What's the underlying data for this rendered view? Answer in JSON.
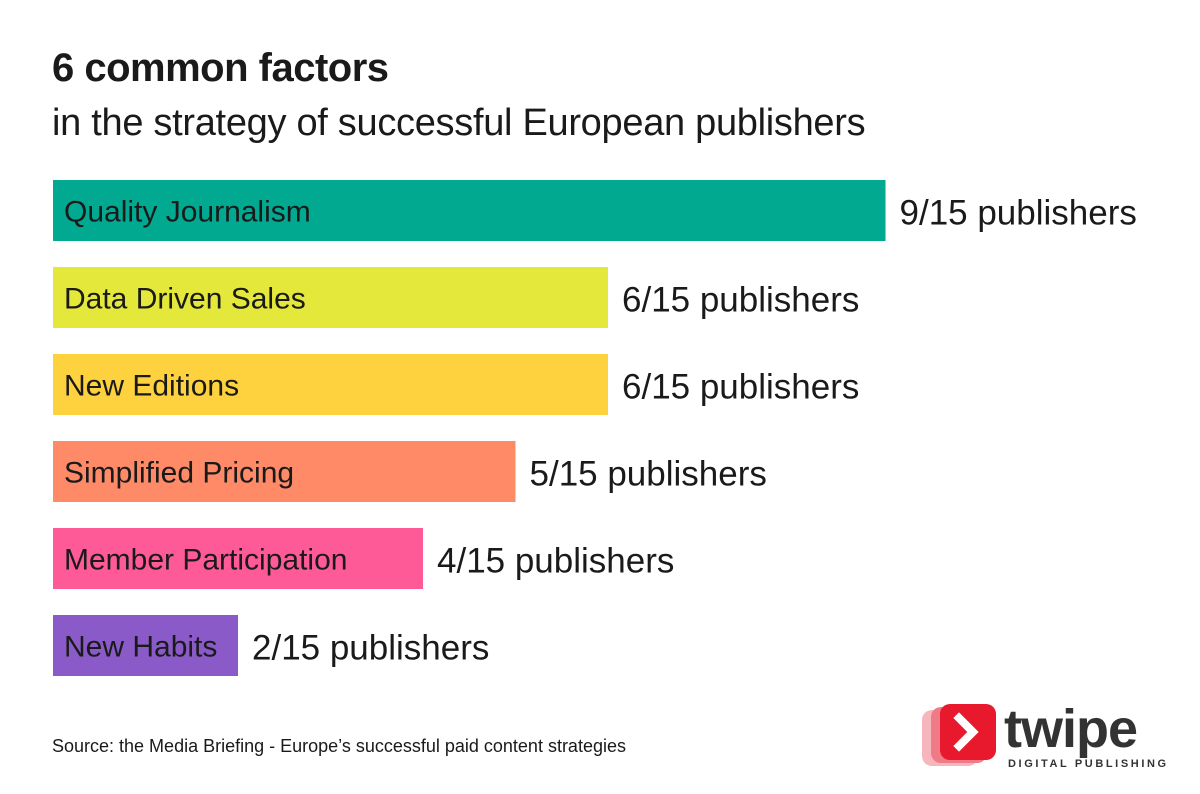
{
  "chart_data": {
    "type": "bar",
    "orientation": "horizontal",
    "title": "6 common factors",
    "subtitle": "in the strategy of successful European publishers",
    "categories": [
      "Quality Journalism",
      "Data Driven Sales",
      "New Editions",
      "Simplified Pricing",
      "Member Participation",
      "New Habits"
    ],
    "values": [
      9,
      6,
      6,
      5,
      4,
      2
    ],
    "value_labels": [
      "9/15 publishers",
      "6/15 publishers",
      "6/15 publishers",
      "5/15 publishers",
      "4/15 publishers",
      "2/15 publishers"
    ],
    "colors": [
      "#00a98f",
      "#e3e83a",
      "#fdd23e",
      "#fe8a67",
      "#fe5a97",
      "#8a5bc8"
    ],
    "xlim": [
      0,
      15
    ],
    "grid": false,
    "legend": "none"
  },
  "source": "Source: the Media Briefing - Europe’s successful paid content strategies",
  "logo": {
    "name": "twipe",
    "tagline": "DIGITAL PUBLISHING",
    "icon": "play-arrow-icon",
    "colors": [
      "#e8192c",
      "#f07a85",
      "#f6b6bc"
    ]
  }
}
